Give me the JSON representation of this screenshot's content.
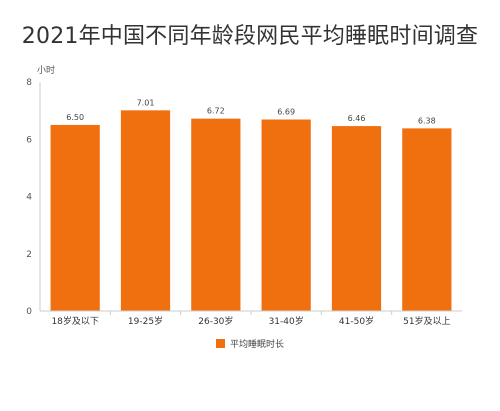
{
  "chart_data": {
    "type": "bar",
    "title": "2021年中国不同年龄段网民平均睡眠时间调查",
    "ylabel": "小时",
    "xlabel": "",
    "categories": [
      "18岁及以下",
      "19-25岁",
      "26-30岁",
      "31-40岁",
      "41-50岁",
      "51岁及以上"
    ],
    "series": [
      {
        "name": "平均睡眠时长",
        "values": [
          6.5,
          7.01,
          6.72,
          6.69,
          6.46,
          6.38
        ],
        "color": "#f0700f"
      }
    ],
    "value_labels": [
      "6.50",
      "7.01",
      "6.72",
      "6.69",
      "6.46",
      "6.38"
    ],
    "ylim": [
      0,
      8
    ],
    "yticks": [
      0,
      2,
      4,
      6,
      8
    ],
    "grid": false,
    "legend_position": "bottom"
  }
}
